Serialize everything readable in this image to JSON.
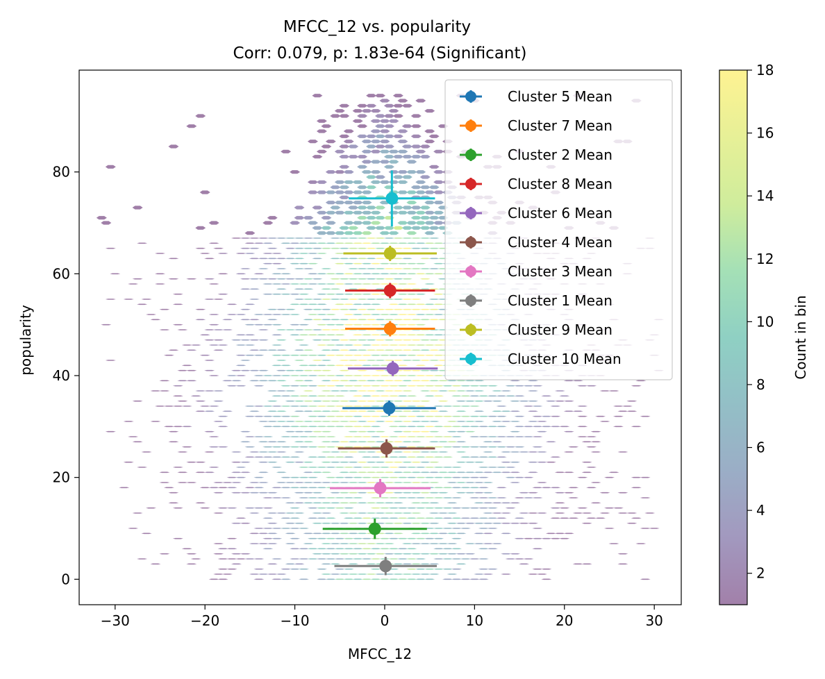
{
  "chart_data": {
    "type": "scatter",
    "title": "MFCC_12 vs. popularity",
    "subtitle": "Corr: 0.079, p: 1.83e-64 (Significant)",
    "xlabel": "MFCC_12",
    "ylabel": "popularity",
    "xlim": [
      -34,
      33
    ],
    "ylim": [
      -5,
      100
    ],
    "xticks": [
      -30,
      -20,
      -10,
      0,
      10,
      20,
      30
    ],
    "xtick_labels": [
      "−30",
      "−20",
      "−10",
      "0",
      "10",
      "20",
      "30"
    ],
    "yticks": [
      0,
      20,
      40,
      60,
      80
    ],
    "ytick_labels": [
      "0",
      "20",
      "40",
      "60",
      "80"
    ],
    "grid": false,
    "legend_placement": "upper right",
    "background": "hexbin density of MFCC_12 vs popularity, viridis colormap at alpha 0.5",
    "colorbar": {
      "label": "Count in bin",
      "min": 1,
      "max": 18,
      "ticks": [
        2,
        4,
        6,
        8,
        10,
        12,
        14,
        16,
        18
      ],
      "colormap": "viridis"
    },
    "series": [
      {
        "name": "Cluster 5 Mean",
        "color": "#1f77b4",
        "x": 0.5,
        "y": 33.6,
        "xerr": 5.2,
        "yerr": 1.5
      },
      {
        "name": "Cluster 7 Mean",
        "color": "#ff7f0e",
        "x": 0.6,
        "y": 49.2,
        "xerr": 5.0,
        "yerr": 1.5
      },
      {
        "name": "Cluster 2 Mean",
        "color": "#2ca02c",
        "x": -1.1,
        "y": 9.9,
        "xerr": 5.8,
        "yerr": 2.0
      },
      {
        "name": "Cluster 8 Mean",
        "color": "#d62728",
        "x": 0.6,
        "y": 56.7,
        "xerr": 5.0,
        "yerr": 1.5
      },
      {
        "name": "Cluster 6 Mean",
        "color": "#9467bd",
        "x": 0.9,
        "y": 41.4,
        "xerr": 5.0,
        "yerr": 1.5
      },
      {
        "name": "Cluster 4 Mean",
        "color": "#8c564b",
        "x": 0.2,
        "y": 25.7,
        "xerr": 5.4,
        "yerr": 1.8
      },
      {
        "name": "Cluster 3 Mean",
        "color": "#e377c2",
        "x": -0.5,
        "y": 17.9,
        "xerr": 5.6,
        "yerr": 1.8
      },
      {
        "name": "Cluster 1 Mean",
        "color": "#7f7f7f",
        "x": 0.1,
        "y": 2.6,
        "xerr": 5.7,
        "yerr": 1.8
      },
      {
        "name": "Cluster 9 Mean",
        "color": "#bcbd22",
        "x": 0.6,
        "y": 64.0,
        "xerr": 5.2,
        "yerr": 1.5
      },
      {
        "name": "Cluster 10 Mean",
        "color": "#17becf",
        "x": 0.8,
        "y": 74.8,
        "xerr": 4.8,
        "yerr": 5.5
      }
    ]
  }
}
